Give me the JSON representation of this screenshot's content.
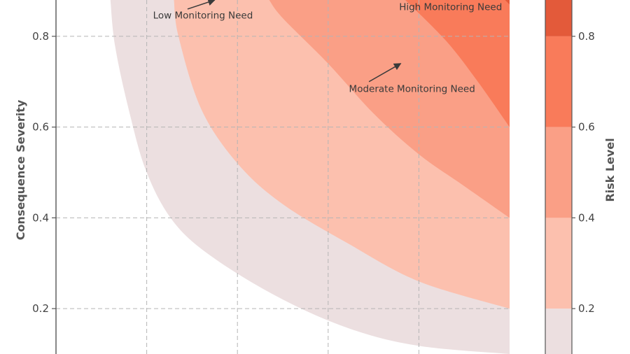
{
  "chart_data": {
    "type": "heatmap",
    "subtype": "filled-contour",
    "ylabel": "Consequence Severity",
    "colorbar_label": "Risk Level",
    "xlim": [
      0.0,
      1.0
    ],
    "ylim": [
      0.1,
      0.88
    ],
    "yticks": [
      0.2,
      0.4,
      0.6,
      0.8
    ],
    "xgrid": [
      0.2,
      0.4,
      0.6,
      0.8
    ],
    "grid": true,
    "levels": [
      {
        "min": 0.1,
        "max": 0.2,
        "color": "#ecdfe0"
      },
      {
        "min": 0.2,
        "max": 0.4,
        "color": "#fcc0ae"
      },
      {
        "min": 0.4,
        "max": 0.6,
        "color": "#fa9f86"
      },
      {
        "min": 0.6,
        "max": 0.8,
        "color": "#f97b5a"
      },
      {
        "min": 0.8,
        "max": 1.0,
        "color": "#e35a3a"
      }
    ],
    "contours": [
      {
        "level": 0.1,
        "points": [
          [
            0.12,
            0.88
          ],
          [
            0.13,
            0.78
          ],
          [
            0.16,
            0.64
          ],
          [
            0.2,
            0.5
          ],
          [
            0.26,
            0.39
          ],
          [
            0.35,
            0.31
          ],
          [
            0.5,
            0.22
          ],
          [
            0.65,
            0.155
          ],
          [
            0.8,
            0.118
          ],
          [
            1.0,
            0.1
          ]
        ]
      },
      {
        "level": 0.2,
        "points": [
          [
            0.26,
            0.88
          ],
          [
            0.27,
            0.8
          ],
          [
            0.32,
            0.64
          ],
          [
            0.4,
            0.52
          ],
          [
            0.5,
            0.43
          ],
          [
            0.65,
            0.34
          ],
          [
            0.8,
            0.26
          ],
          [
            1.0,
            0.2
          ]
        ]
      },
      {
        "level": 0.4,
        "points": [
          [
            0.47,
            0.88
          ],
          [
            0.5,
            0.84
          ],
          [
            0.6,
            0.74
          ],
          [
            0.7,
            0.63
          ],
          [
            0.8,
            0.54
          ],
          [
            0.9,
            0.47
          ],
          [
            1.0,
            0.4
          ]
        ]
      },
      {
        "level": 0.6,
        "points": [
          [
            0.77,
            0.88
          ],
          [
            0.86,
            0.79
          ],
          [
            0.93,
            0.7
          ],
          [
            1.0,
            0.6
          ]
        ]
      },
      {
        "level": 0.8,
        "points": [
          [
            0.99,
            0.88
          ],
          [
            1.0,
            0.87
          ]
        ]
      }
    ],
    "annotations": [
      {
        "text": "Low Monitoring Need",
        "x": 0.324,
        "y": 0.847,
        "arrow_tail": [
          0.29,
          0.86
        ],
        "arrow_head": [
          0.35,
          0.88
        ]
      },
      {
        "text": "High Monitoring Need",
        "x": 0.87,
        "y": 0.865
      },
      {
        "text": "Moderate Monitoring Need",
        "x": 0.785,
        "y": 0.685,
        "arrow_tail": [
          0.69,
          0.7
        ],
        "arrow_head": [
          0.76,
          0.74
        ]
      }
    ],
    "colorbar_ticks": [
      0.2,
      0.4,
      0.6,
      0.8
    ]
  }
}
